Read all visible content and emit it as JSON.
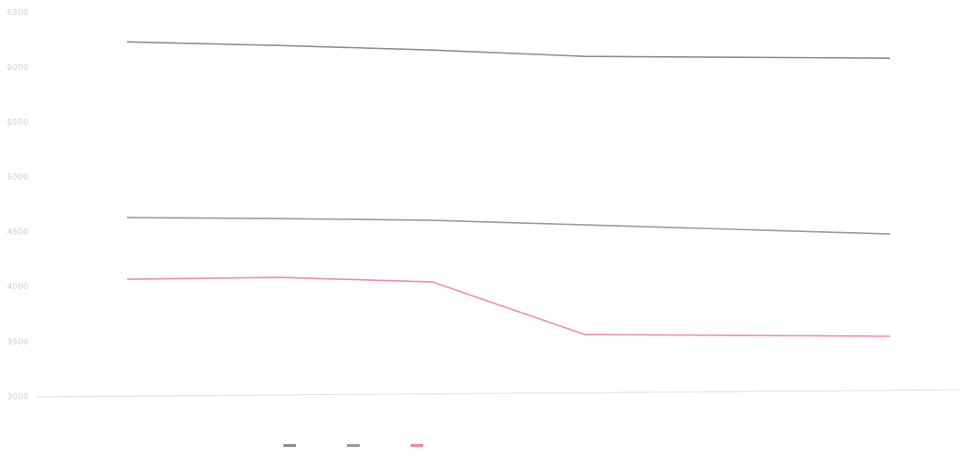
{
  "chart_data": {
    "type": "line",
    "categories": [
      null,
      null,
      null,
      null,
      null,
      null
    ],
    "series": [
      {
        "color": "#8c8c8c",
        "values": [
          6234,
          6201,
          6160,
          6102,
          6094,
          6086
        ]
      },
      {
        "color": "#999999",
        "values": [
          4634,
          4625,
          4609,
          4568,
          4526,
          4485
        ]
      },
      {
        "color": "#f08aa8",
        "values": [
          4073,
          4089,
          4048,
          3569,
          3561,
          3553
        ]
      }
    ],
    "ylim": [
      3000,
      6500
    ],
    "yticks": [
      3000,
      3500,
      4000,
      4500,
      5000,
      5500,
      6000,
      6500
    ],
    "grid": false
  }
}
